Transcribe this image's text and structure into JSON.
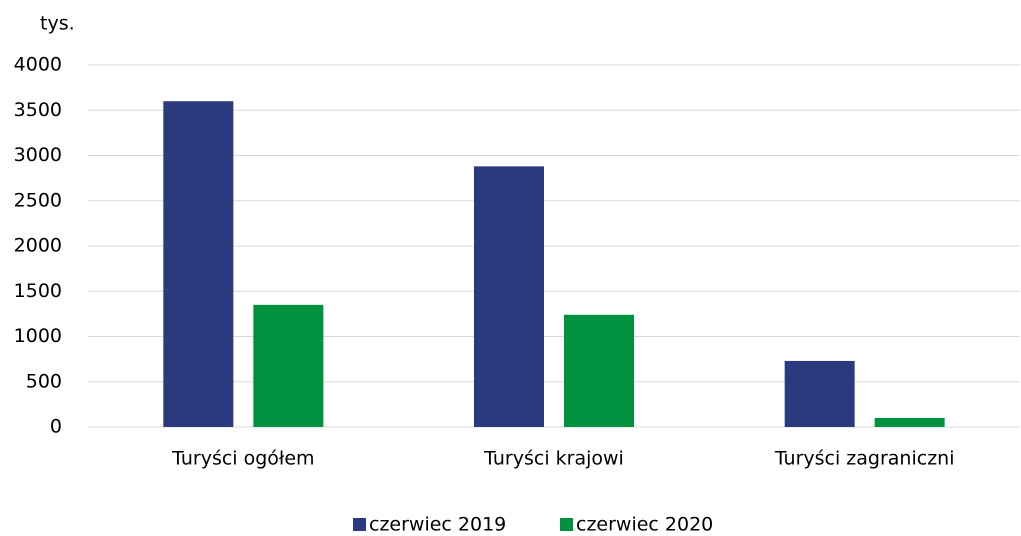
{
  "chart_data": {
    "type": "bar",
    "y_unit": "tys.",
    "categories": [
      "Turyści ogółem",
      "Turyści krajowi",
      "Turyści zagraniczni"
    ],
    "series": [
      {
        "name": "czerwiec 2019",
        "color": "#2b3a7e",
        "values": [
          3600,
          2880,
          730
        ]
      },
      {
        "name": "czerwiec 2020",
        "color": "#00923f",
        "values": [
          1350,
          1240,
          100
        ]
      }
    ],
    "ylim": [
      0,
      4000
    ],
    "yticks": [
      0,
      500,
      1000,
      1500,
      2000,
      2500,
      3000,
      3500,
      4000
    ],
    "grid": true,
    "legend": "bottom"
  }
}
